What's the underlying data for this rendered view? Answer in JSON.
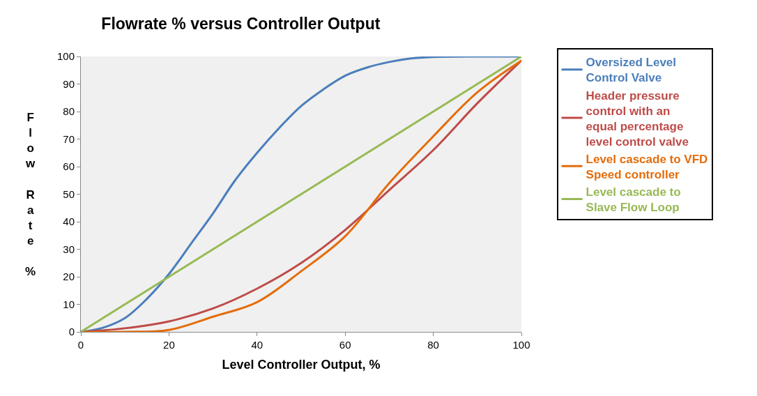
{
  "chart_data": {
    "type": "line",
    "title": "Flowrate % versus Controller Output",
    "xlabel": "Level Controller Output, %",
    "ylabel": "Flow Rate %",
    "xlim": [
      0,
      100
    ],
    "ylim": [
      0,
      100
    ],
    "xticks": [
      0,
      20,
      40,
      60,
      80,
      100
    ],
    "yticks": [
      0,
      10,
      20,
      30,
      40,
      50,
      60,
      70,
      80,
      90,
      100
    ],
    "grid": false,
    "legend": "right",
    "marker": "none",
    "line_style": "solid",
    "series": [
      {
        "name": "Oversized Level Control Valve",
        "color": "#4a7ebb",
        "x": [
          0,
          5,
          10,
          15,
          20,
          25,
          30,
          35,
          40,
          45,
          50,
          55,
          60,
          65,
          70,
          75,
          80,
          90,
          100
        ],
        "values": [
          0,
          1.5,
          5,
          12,
          21,
          32,
          43,
          55,
          65,
          74,
          82,
          88,
          93,
          96,
          98,
          99.3,
          99.8,
          100,
          100
        ]
      },
      {
        "name": "Header pressure control with an equal percentage level control valve",
        "color": "#be4b48",
        "x": [
          0,
          10,
          20,
          30,
          40,
          50,
          60,
          70,
          80,
          90,
          100
        ],
        "values": [
          0,
          1.3,
          3.8,
          8.5,
          15.7,
          25,
          37,
          51.5,
          66,
          83,
          98.5
        ]
      },
      {
        "name": "Level cascade to VFD Speed controller",
        "color": "#e46c0a",
        "x": [
          0,
          10,
          20,
          30,
          40,
          50,
          60,
          70,
          80,
          90,
          100
        ],
        "values": [
          0,
          0,
          0.7,
          5.5,
          10.8,
          22,
          34.7,
          54,
          71,
          87,
          98.5
        ]
      },
      {
        "name": "Level cascade to Slave Flow Loop",
        "color": "#98b954",
        "x": [
          0,
          100
        ],
        "values": [
          0,
          100
        ]
      }
    ]
  }
}
